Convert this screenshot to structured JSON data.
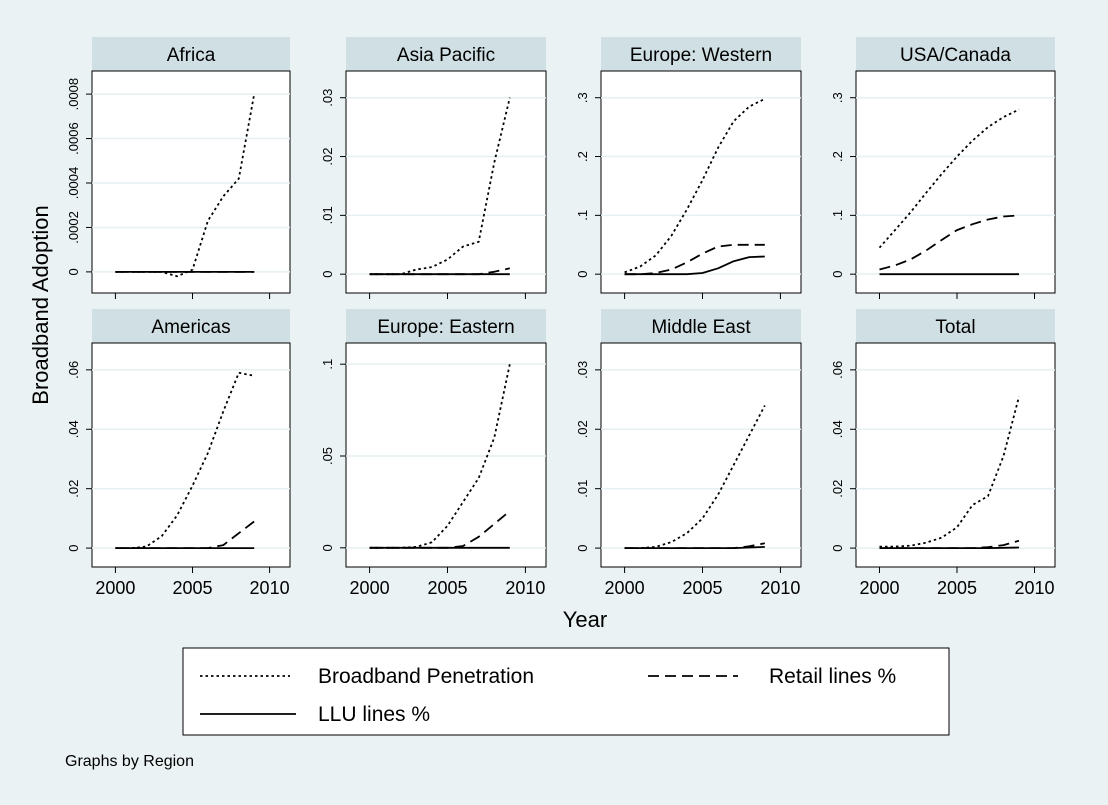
{
  "chart_data": {
    "type": "line",
    "xlabel": "Year",
    "ylabel": "Broadband Adoption",
    "note": "Graphs by Region",
    "x_ticks": [
      2000,
      2005,
      2010
    ],
    "xlim": [
      1999,
      2011
    ],
    "legend": {
      "placement": "bottom",
      "entries": [
        {
          "name": "Broadband Penetration",
          "style": "dotted"
        },
        {
          "name": "Retail lines %",
          "style": "dashed"
        },
        {
          "name": "LLU lines %",
          "style": "solid"
        }
      ]
    },
    "years": [
      2000,
      2001,
      2002,
      2003,
      2004,
      2005,
      2006,
      2007,
      2008,
      2009
    ],
    "panels": [
      {
        "title": "Africa",
        "ylim": [
          -5e-05,
          0.00085
        ],
        "y_ticks": [
          0,
          0.0002,
          0.0004,
          0.0006,
          0.0008
        ],
        "y_tick_labels": [
          "0",
          ".0002",
          ".0004",
          ".0006",
          ".0008"
        ],
        "series": [
          {
            "values": [
              0,
              0,
              0,
              0,
              -2e-05,
              1e-05,
              0.00023,
              0.00034,
              0.00042,
              0.0008
            ]
          },
          {
            "values": [
              0,
              0,
              0,
              0,
              0,
              0,
              0,
              0,
              0,
              0
            ]
          },
          {
            "values": [
              0,
              0,
              0,
              0,
              0,
              0,
              0,
              0,
              0,
              0
            ]
          }
        ]
      },
      {
        "title": "Asia Pacific",
        "ylim": [
          -0.0015,
          0.0325
        ],
        "y_ticks": [
          0,
          0.01,
          0.02,
          0.03
        ],
        "y_tick_labels": [
          "0",
          ".01",
          ".02",
          ".03"
        ],
        "series": [
          {
            "values": [
              0,
              0,
              0,
              0.0008,
              0.0012,
              0.0025,
              0.0047,
              0.0055,
              0.019,
              0.03
            ]
          },
          {
            "values": [
              0,
              0,
              0,
              0,
              0,
              0,
              0,
              0,
              0.0004,
              0.001
            ]
          },
          {
            "values": [
              0,
              0,
              0,
              0,
              0,
              0,
              0,
              0,
              0,
              0
            ]
          }
        ]
      },
      {
        "title": "Europe: Western",
        "ylim": [
          -0.015,
          0.325
        ],
        "y_ticks": [
          0,
          0.1,
          0.2,
          0.3
        ],
        "y_tick_labels": [
          "0",
          ".1",
          ".2",
          ".3"
        ],
        "series": [
          {
            "values": [
              0.003,
              0.013,
              0.032,
              0.065,
              0.11,
              0.16,
              0.215,
              0.26,
              0.285,
              0.298
            ]
          },
          {
            "values": [
              0,
              0,
              0.002,
              0.008,
              0.02,
              0.035,
              0.047,
              0.05,
              0.05,
              0.05
            ]
          },
          {
            "values": [
              0,
              0,
              0,
              0,
              0,
              0.002,
              0.01,
              0.022,
              0.029,
              0.03
            ]
          }
        ]
      },
      {
        "title": "USA/Canada",
        "ylim": [
          -0.015,
          0.325
        ],
        "y_ticks": [
          0,
          0.1,
          0.2,
          0.3
        ],
        "y_tick_labels": [
          "0",
          ".1",
          ".2",
          ".3"
        ],
        "series": [
          {
            "values": [
              0.045,
              0.075,
              0.105,
              0.138,
              0.17,
              0.2,
              0.227,
              0.25,
              0.267,
              0.28
            ]
          },
          {
            "values": [
              0.008,
              0.015,
              0.025,
              0.04,
              0.058,
              0.075,
              0.085,
              0.093,
              0.098,
              0.1
            ]
          },
          {
            "values": [
              0,
              0,
              0,
              0,
              0,
              0,
              0,
              0,
              0,
              0
            ]
          }
        ]
      },
      {
        "title": "Americas",
        "ylim": [
          -0.003,
          0.065
        ],
        "y_ticks": [
          0,
          0.02,
          0.04,
          0.06
        ],
        "y_tick_labels": [
          "0",
          ".02",
          ".04",
          ".06"
        ],
        "series": [
          {
            "values": [
              0,
              0,
              0.0005,
              0.004,
              0.011,
              0.021,
              0.032,
              0.046,
              0.059,
              0.058
            ]
          },
          {
            "values": [
              0,
              0,
              0,
              0,
              0,
              0,
              0,
              0.001,
              0.005,
              0.009
            ]
          },
          {
            "values": [
              0,
              0,
              0,
              0,
              0,
              0,
              0,
              0,
              0,
              0
            ]
          }
        ]
      },
      {
        "title": "Europe: Eastern",
        "ylim": [
          -0.005,
          0.105
        ],
        "y_ticks": [
          0,
          0.05,
          0.1
        ],
        "y_tick_labels": [
          "0",
          ".05",
          ".1"
        ],
        "series": [
          {
            "values": [
              0,
              0,
              0,
              0.0005,
              0.003,
              0.012,
              0.025,
              0.038,
              0.06,
              0.1
            ]
          },
          {
            "values": [
              0,
              0,
              0,
              0,
              0,
              0,
              0.001,
              0.006,
              0.013,
              0.02
            ]
          },
          {
            "values": [
              0,
              0,
              0,
              0,
              0,
              0,
              0,
              0,
              0,
              0
            ]
          }
        ]
      },
      {
        "title": "Middle East",
        "ylim": [
          -0.0015,
          0.0325
        ],
        "y_ticks": [
          0,
          0.01,
          0.02,
          0.03
        ],
        "y_tick_labels": [
          "0",
          ".01",
          ".02",
          ".03"
        ],
        "series": [
          {
            "values": [
              0,
              0,
              0.0002,
              0.001,
              0.0025,
              0.005,
              0.009,
              0.014,
              0.019,
              0.024
            ]
          },
          {
            "values": [
              0,
              0,
              0,
              0,
              0,
              0,
              0,
              0,
              0.0003,
              0.0008
            ]
          },
          {
            "values": [
              0,
              0,
              0,
              0,
              0,
              0,
              0,
              0,
              0.0001,
              0.0002
            ]
          }
        ]
      },
      {
        "title": "Total",
        "ylim": [
          -0.003,
          0.065
        ],
        "y_ticks": [
          0,
          0.02,
          0.04,
          0.06
        ],
        "y_tick_labels": [
          "0",
          ".02",
          ".04",
          ".06"
        ],
        "series": [
          {
            "values": [
              0.0005,
              0.0005,
              0.0008,
              0.0018,
              0.0035,
              0.007,
              0.0145,
              0.0175,
              0.031,
              0.051
            ]
          },
          {
            "values": [
              0,
              0,
              0,
              0,
              0,
              0,
              0,
              0.0003,
              0.001,
              0.0025
            ]
          },
          {
            "values": [
              0,
              0,
              0,
              0,
              0,
              0,
              0,
              0,
              0.0001,
              0.0002
            ]
          }
        ]
      }
    ]
  }
}
